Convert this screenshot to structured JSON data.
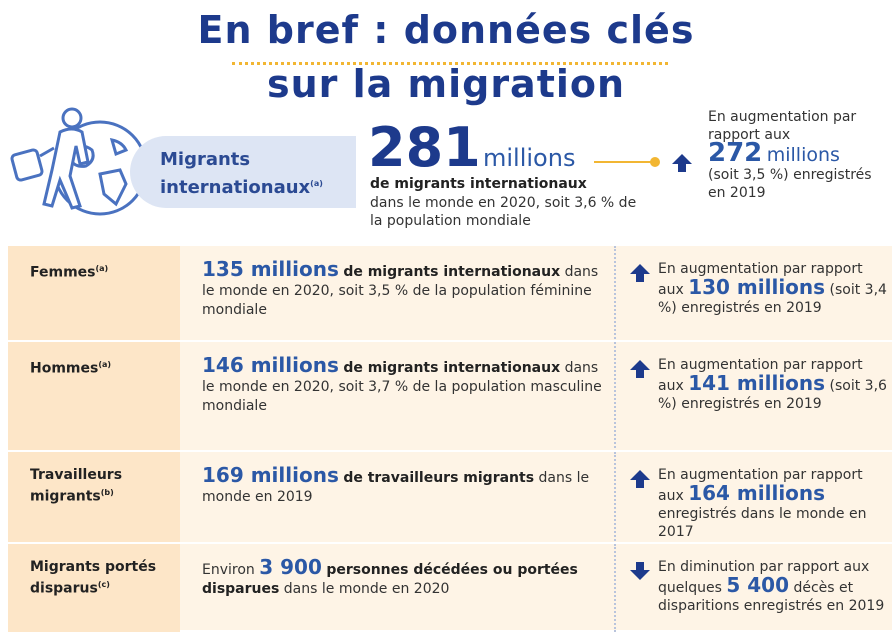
{
  "title": [
    "En bref : données clés",
    "sur la migration"
  ],
  "hero": {
    "label": "Migrants internationaux",
    "note": "(a)",
    "number": "281",
    "unit": "millions",
    "bold": "de migrants internationaux",
    "text": "dans le monde en 2020, soit 3,6 % de la population mondiale",
    "comparison": {
      "arrow": "up",
      "before": "En augmentation par rapport aux",
      "number": "272",
      "unit": "millions",
      "after": "(soit 3,5 %) enregistrés en 2019"
    }
  },
  "rows": [
    {
      "label": "Femmes",
      "note": "(a)",
      "main": [
        {
          "text": "135 millions",
          "style": "big"
        },
        {
          "text": "de migrants internationaux",
          "style": "bold"
        },
        {
          "text": "dans le monde en 2020, soit 3,5 % de la population féminine mondiale"
        }
      ],
      "arrow": "up",
      "comparison": [
        {
          "text": "En augmentation par rapport aux"
        },
        {
          "text": "130 millions",
          "style": "big"
        },
        {
          "text": "(soit 3,4 %) enregistrés en 2019"
        }
      ]
    },
    {
      "label": "Hommes",
      "note": "(a)",
      "main": [
        {
          "text": "146 millions",
          "style": "big"
        },
        {
          "text": "de migrants internationaux",
          "style": "bold"
        },
        {
          "text": "dans le monde en 2020, soit 3,7 % de la population masculine mondiale"
        }
      ],
      "arrow": "up",
      "comparison": [
        {
          "text": "En augmentation par rapport aux"
        },
        {
          "text": "141 millions",
          "style": "big"
        },
        {
          "text": "(soit 3,6 %) enregistrés en 2019"
        }
      ]
    },
    {
      "label": "Travailleurs migrants",
      "note": "(b)",
      "main": [
        {
          "text": "169 millions",
          "style": "big"
        },
        {
          "text": "de travailleurs migrants",
          "style": "bold"
        },
        {
          "text": "dans le monde en 2019"
        }
      ],
      "arrow": "up",
      "comparison": [
        {
          "text": "En augmentation par rapport aux"
        },
        {
          "text": "164 millions",
          "style": "big"
        },
        {
          "text": "enregistrés dans le monde en 2017"
        }
      ]
    },
    {
      "label": "Migrants portés disparus",
      "note": "(c)",
      "main": [
        {
          "text": "Environ"
        },
        {
          "text": "3 900",
          "style": "big"
        },
        {
          "text": "personnes décédées ou portées disparues",
          "style": "bold"
        },
        {
          "text": "dans le monde en 2020"
        }
      ],
      "arrow": "down",
      "comparison": [
        {
          "text": "En diminution par rapport aux quelques"
        },
        {
          "text": "5 400",
          "style": "big"
        },
        {
          "text": "décès et disparitions enregistrés en 2019"
        }
      ]
    }
  ]
}
